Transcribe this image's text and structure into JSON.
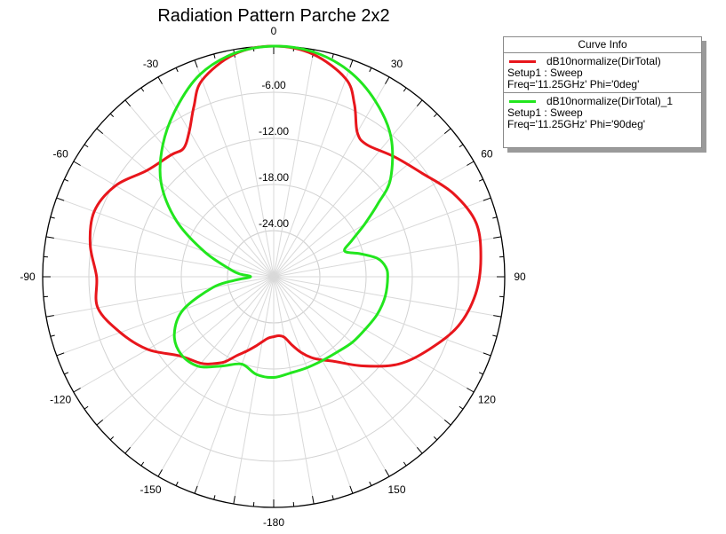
{
  "chart_data": {
    "type": "polar-line",
    "title": "Radiation Pattern Parche 2x2",
    "theta_unit": "deg",
    "theta_ticks": [
      0,
      30,
      60,
      90,
      120,
      150,
      -180,
      -150,
      -120,
      -90,
      -60,
      -30
    ],
    "theta_tick_labels": [
      "0",
      "30",
      "60",
      "90",
      "120",
      "150",
      "-180",
      "-150",
      "-120",
      "-90",
      "-60",
      "-30"
    ],
    "r_range": [
      -30,
      0
    ],
    "r_ticks": [
      -6,
      -12,
      -18,
      -24
    ],
    "r_tick_labels": [
      "-6.00",
      "-12.00",
      "-18.00",
      "-24.00"
    ],
    "grid": true,
    "legend": {
      "title": "Curve Info",
      "placement": "top-right"
    },
    "series": [
      {
        "name": "dB10normalize(DirTotal)",
        "setup": "Setup1 : Sweep",
        "params": "Freq='11.25GHz' Phi='0deg'",
        "color": "#e8161c",
        "theta": [
          0,
          10,
          20,
          25,
          30,
          35,
          45,
          55,
          65,
          75,
          85,
          95,
          105,
          115,
          125,
          135,
          145,
          150,
          155,
          160,
          165,
          170,
          175,
          180,
          -175,
          -170,
          -165,
          -160,
          -155,
          -150,
          -145,
          -140,
          -130,
          -120,
          -110,
          -100,
          -90,
          -80,
          -70,
          -60,
          -50,
          -40,
          -35,
          -30,
          -25,
          -20,
          -10
        ],
        "r": [
          0,
          -0.6,
          -2.6,
          -5.2,
          -8.3,
          -9.0,
          -7.9,
          -6.5,
          -4.3,
          -2.8,
          -3.0,
          -3.7,
          -5.2,
          -7.7,
          -10.2,
          -13.6,
          -16.6,
          -17.5,
          -18.4,
          -19.5,
          -20.8,
          -22.0,
          -22.3,
          -22.2,
          -22.0,
          -21.4,
          -20.6,
          -19.7,
          -18.7,
          -17.2,
          -16.2,
          -15.3,
          -14.0,
          -11.1,
          -8.8,
          -6.8,
          -7.0,
          -5.8,
          -5.2,
          -6.3,
          -8.5,
          -9.3,
          -9.6,
          -8.1,
          -5.5,
          -2.8,
          -0.6
        ]
      },
      {
        "name": "dB10normalize(DirTotal)_1",
        "setup": "Setup1 : Sweep",
        "params": "Freq='11.25GHz' Phi='90deg'",
        "color": "#22e61e",
        "theta": [
          0,
          10,
          20,
          30,
          40,
          50,
          55,
          60,
          65,
          70,
          75,
          80,
          85,
          90,
          100,
          110,
          120,
          130,
          140,
          150,
          160,
          170,
          180,
          -170,
          -160,
          -150,
          -140,
          -130,
          -120,
          -110,
          -100,
          -95,
          -90,
          -85,
          -80,
          -70,
          -60,
          -50,
          -40,
          -30,
          -20,
          -10
        ],
        "r": [
          0,
          -0.3,
          -1.5,
          -3.6,
          -6.3,
          -10.2,
          -13.5,
          -16.4,
          -18.8,
          -20.2,
          -18.4,
          -16.3,
          -15.4,
          -15.2,
          -15.3,
          -15.7,
          -16.3,
          -16.7,
          -17.2,
          -17.4,
          -17.4,
          -17.3,
          -16.9,
          -17.1,
          -17.9,
          -16.6,
          -14.8,
          -14.3,
          -15.1,
          -17.5,
          -22.0,
          -25.0,
          -27.0,
          -25.5,
          -24.2,
          -20.4,
          -15.4,
          -10.9,
          -7.6,
          -4.7,
          -2.0,
          -0.5
        ]
      }
    ]
  }
}
